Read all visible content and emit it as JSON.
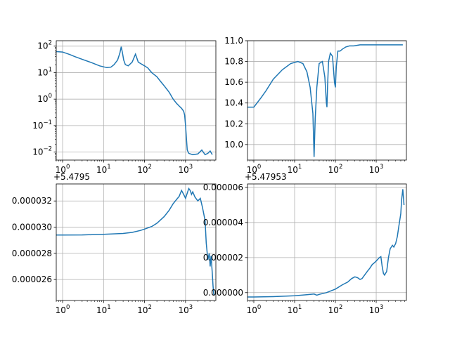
{
  "chart_data": [
    {
      "type": "line",
      "xscale": "log",
      "yscale": "log",
      "xlim": [
        0.7,
        5500
      ],
      "ylim": [
        0.005,
        160
      ],
      "grid": true,
      "color": "#1f77b4",
      "xticks": [
        {
          "value": 1,
          "base": "10",
          "exp": "0"
        },
        {
          "value": 10,
          "base": "10",
          "exp": "1"
        },
        {
          "value": 100,
          "base": "10",
          "exp": "2"
        },
        {
          "value": 1000,
          "base": "10",
          "exp": "3"
        }
      ],
      "yticks": [
        {
          "value": 0.01,
          "base": "10",
          "exp": "−2"
        },
        {
          "value": 0.1,
          "base": "10",
          "exp": "−1"
        },
        {
          "value": 1,
          "base": "10",
          "exp": "0"
        },
        {
          "value": 10,
          "base": "10",
          "exp": "1"
        },
        {
          "value": 100,
          "base": "10",
          "exp": "2"
        }
      ],
      "series": [
        {
          "x": [
            0.7,
            1,
            1.5,
            2,
            3,
            5,
            8,
            12,
            15,
            18,
            22,
            25,
            27,
            29,
            31,
            34,
            40,
            50,
            60,
            70,
            80,
            100,
            120,
            150,
            200,
            250,
            300,
            400,
            500,
            600,
            700,
            800,
            900,
            950,
            1000,
            1100,
            1200,
            1500,
            2000,
            2500,
            3000,
            3500,
            4000,
            4500
          ],
          "y": [
            62,
            60,
            48,
            40,
            32,
            24,
            18,
            15.5,
            16,
            20,
            30,
            55,
            95,
            55,
            30,
            20,
            18,
            25,
            50,
            25,
            22,
            18,
            15,
            10,
            7,
            4.5,
            3.2,
            1.8,
            1,
            0.7,
            0.55,
            0.45,
            0.35,
            0.25,
            0.1,
            0.012,
            0.009,
            0.008,
            0.0085,
            0.012,
            0.008,
            0.009,
            0.011,
            0.008
          ]
        }
      ]
    },
    {
      "type": "line",
      "xscale": "log",
      "yscale": "linear",
      "xlim": [
        0.7,
        5500
      ],
      "ylim": [
        9.85,
        11.0
      ],
      "grid": true,
      "color": "#1f77b4",
      "xticks": [
        {
          "value": 1,
          "base": "10",
          "exp": "0"
        },
        {
          "value": 10,
          "base": "10",
          "exp": "1"
        },
        {
          "value": 100,
          "base": "10",
          "exp": "2"
        },
        {
          "value": 1000,
          "base": "10",
          "exp": "3"
        }
      ],
      "yticks": [
        {
          "value": 10.0,
          "label": "10.0"
        },
        {
          "value": 10.2,
          "label": "10.2"
        },
        {
          "value": 10.4,
          "label": "10.4"
        },
        {
          "value": 10.6,
          "label": "10.6"
        },
        {
          "value": 10.8,
          "label": "10.8"
        },
        {
          "value": 11.0,
          "label": "11.0"
        }
      ],
      "series": [
        {
          "x": [
            0.7,
            1,
            1.5,
            2,
            3,
            5,
            8,
            12,
            16,
            20,
            24,
            28,
            30,
            32,
            35,
            40,
            48,
            55,
            60,
            62,
            64,
            68,
            75,
            85,
            95,
            100,
            105,
            115,
            130,
            150,
            180,
            220,
            280,
            400,
            700,
            1000,
            2000,
            4500
          ],
          "y": [
            10.36,
            10.36,
            10.45,
            10.52,
            10.63,
            10.72,
            10.78,
            10.8,
            10.78,
            10.7,
            10.55,
            10.3,
            9.88,
            10.25,
            10.55,
            10.78,
            10.8,
            10.65,
            10.4,
            10.36,
            10.55,
            10.8,
            10.88,
            10.85,
            10.6,
            10.55,
            10.75,
            10.9,
            10.9,
            10.92,
            10.94,
            10.95,
            10.95,
            10.96,
            10.96,
            10.96,
            10.96,
            10.96
          ]
        }
      ]
    },
    {
      "type": "line",
      "xscale": "log",
      "yscale": "linear",
      "xlim": [
        0.7,
        5500
      ],
      "ylim": [
        2.44e-05,
        3.33e-05
      ],
      "offset_text": "+5.4795",
      "grid": true,
      "color": "#1f77b4",
      "xticks": [
        {
          "value": 1,
          "base": "10",
          "exp": "0"
        },
        {
          "value": 10,
          "base": "10",
          "exp": "1"
        },
        {
          "value": 100,
          "base": "10",
          "exp": "2"
        },
        {
          "value": 1000,
          "base": "10",
          "exp": "3"
        }
      ],
      "yticks": [
        {
          "value": 2.6e-05,
          "label": "0.000026"
        },
        {
          "value": 2.8e-05,
          "label": "0.000028"
        },
        {
          "value": 3e-05,
          "label": "0.000030"
        },
        {
          "value": 3.2e-05,
          "label": "0.000032"
        }
      ],
      "series": [
        {
          "x": [
            0.7,
            1,
            3,
            10,
            30,
            50,
            80,
            100,
            150,
            200,
            300,
            400,
            500,
            600,
            700,
            800,
            900,
            1000,
            1100,
            1200,
            1300,
            1400,
            1500,
            1700,
            2000,
            2300,
            2600,
            3000,
            3200,
            3500,
            3800,
            4000,
            4200,
            4500,
            4700,
            4900
          ],
          "y": [
            2.94e-05,
            2.94e-05,
            2.941e-05,
            2.945e-05,
            2.952e-05,
            2.96e-05,
            2.975e-05,
            2.985e-05,
            3.005e-05,
            3.03e-05,
            3.08e-05,
            3.13e-05,
            3.18e-05,
            3.21e-05,
            3.235e-05,
            3.28e-05,
            3.25e-05,
            3.22e-05,
            3.26e-05,
            3.295e-05,
            3.28e-05,
            3.25e-05,
            3.27e-05,
            3.23e-05,
            3.2e-05,
            3.22e-05,
            3.15e-05,
            3.05e-05,
            2.88e-05,
            2.75e-05,
            2.8e-05,
            2.7e-05,
            2.78e-05,
            2.65e-05,
            2.55e-05,
            2.48e-05
          ]
        }
      ]
    },
    {
      "type": "line",
      "xscale": "log",
      "yscale": "linear",
      "xlim": [
        0.7,
        5500
      ],
      "ylim": [
        -4.5e-07,
        6.2e-06
      ],
      "offset_text": "+5.47953",
      "grid": true,
      "color": "#1f77b4",
      "xticks": [
        {
          "value": 1,
          "base": "10",
          "exp": "0"
        },
        {
          "value": 10,
          "base": "10",
          "exp": "1"
        },
        {
          "value": 100,
          "base": "10",
          "exp": "2"
        },
        {
          "value": 1000,
          "base": "10",
          "exp": "3"
        }
      ],
      "yticks": [
        {
          "value": 0.0,
          "label": "0.000000"
        },
        {
          "value": 2e-06,
          "label": "0.000002"
        },
        {
          "value": 4e-06,
          "label": "0.000004"
        },
        {
          "value": 6e-06,
          "label": "0.000006"
        }
      ],
      "series": [
        {
          "x": [
            0.7,
            1,
            3,
            10,
            20,
            30,
            35,
            40,
            60,
            100,
            150,
            200,
            250,
            300,
            350,
            400,
            450,
            500,
            600,
            700,
            800,
            900,
            1000,
            1100,
            1200,
            1300,
            1400,
            1500,
            1600,
            1800,
            2000,
            2200,
            2500,
            2700,
            3000,
            3300,
            3600,
            4000,
            4200,
            4500,
            4800
          ],
          "y": [
            -2.5e-07,
            -2.5e-07,
            -2.3e-07,
            -1.8e-07,
            -1.2e-07,
            -8e-08,
            -1.5e-07,
            -1e-07,
            0.0,
            2e-07,
            4.5e-07,
            6e-07,
            8e-07,
            9e-07,
            8.5e-07,
            7.5e-07,
            8e-07,
            9.5e-07,
            1.2e-06,
            1.4e-06,
            1.6e-06,
            1.7e-06,
            1.8e-06,
            1.9e-06,
            2e-06,
            2.05e-06,
            1.5e-06,
            1.1e-06,
            1e-06,
            1.2e-06,
            2e-06,
            2.5e-06,
            2.7e-06,
            2.6e-06,
            2.8e-06,
            3.2e-06,
            3.8e-06,
            4.5e-06,
            5.3e-06,
            5.9e-06,
            5e-06
          ]
        }
      ]
    }
  ]
}
